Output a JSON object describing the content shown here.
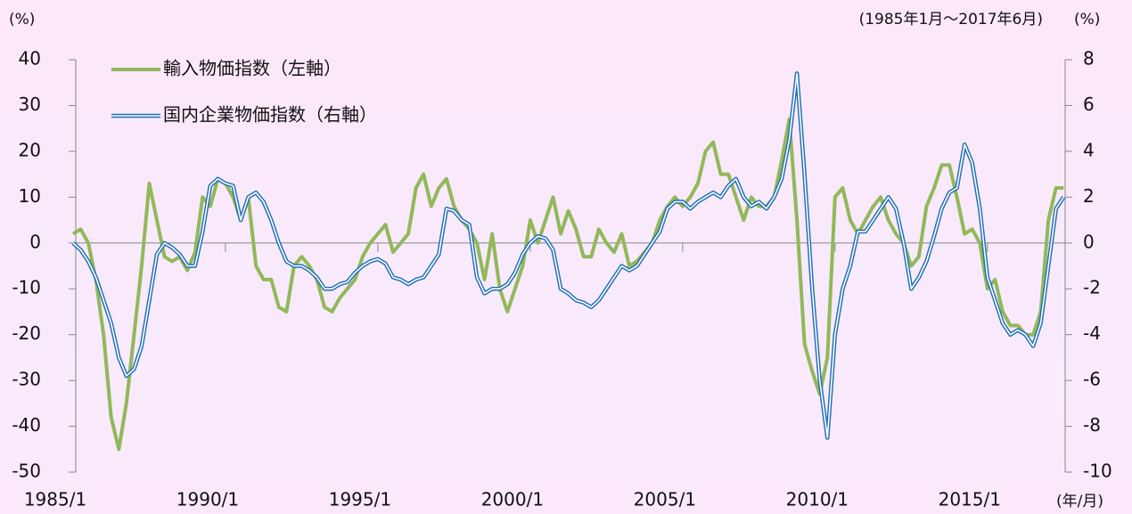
{
  "chart_data": {
    "type": "line",
    "ylabel": "(%)",
    "y2label": "(%)",
    "subtitle": "(1985年1月～2017年6月)",
    "xlabel": "(年/月)",
    "xlim": [
      1985,
      2017.55
    ],
    "ylim": [
      -50,
      40
    ],
    "y2lim": [
      -10,
      8
    ],
    "xticks": [
      {
        "value": 1985,
        "label": "1985/1"
      },
      {
        "value": 1990,
        "label": "1990/1"
      },
      {
        "value": 1995,
        "label": "1995/1"
      },
      {
        "value": 2000,
        "label": "2000/1"
      },
      {
        "value": 2005,
        "label": "2005/1"
      },
      {
        "value": 2010,
        "label": "2010/1"
      },
      {
        "value": 2015,
        "label": "2015/1"
      }
    ],
    "yticks": [
      40,
      30,
      20,
      10,
      0,
      -10,
      -20,
      -30,
      -40,
      -50
    ],
    "y2ticks": [
      8,
      6,
      4,
      2,
      0,
      -2,
      -4,
      -6,
      -8,
      -10
    ],
    "legend": "top-left",
    "x": [
      1985,
      1985.25,
      1985.5,
      1985.75,
      1986,
      1986.25,
      1986.5,
      1986.75,
      1987,
      1987.25,
      1987.5,
      1987.75,
      1988,
      1988.25,
      1988.5,
      1988.75,
      1989,
      1989.25,
      1989.5,
      1989.75,
      1990,
      1990.25,
      1990.5,
      1990.75,
      1991,
      1991.25,
      1991.5,
      1991.75,
      1992,
      1992.25,
      1992.5,
      1992.75,
      1993,
      1993.25,
      1993.5,
      1993.75,
      1994,
      1994.25,
      1994.5,
      1994.75,
      1995,
      1995.25,
      1995.5,
      1995.75,
      1996,
      1996.25,
      1996.5,
      1996.75,
      1997,
      1997.25,
      1997.5,
      1997.75,
      1998,
      1998.25,
      1998.5,
      1998.75,
      1999,
      1999.25,
      1999.5,
      1999.75,
      2000,
      2000.25,
      2000.5,
      2000.75,
      2001,
      2001.25,
      2001.5,
      2001.75,
      2002,
      2002.25,
      2002.5,
      2002.75,
      2003,
      2003.25,
      2003.5,
      2003.75,
      2004,
      2004.25,
      2004.5,
      2004.75,
      2005,
      2005.25,
      2005.5,
      2005.75,
      2006,
      2006.25,
      2006.5,
      2006.75,
      2007,
      2007.25,
      2007.5,
      2007.75,
      2008,
      2008.25,
      2008.5,
      2008.75,
      2009,
      2009.25,
      2009.5,
      2009.75,
      2010,
      2010.25,
      2010.5,
      2010.75,
      2011,
      2011.25,
      2011.5,
      2011.75,
      2012,
      2012.25,
      2012.5,
      2012.75,
      2013,
      2013.25,
      2013.5,
      2013.75,
      2014,
      2014.25,
      2014.5,
      2014.75,
      2015,
      2015.25,
      2015.5,
      2015.75,
      2016,
      2016.25,
      2016.5,
      2016.75,
      2017,
      2017.25,
      2017.5
    ],
    "series": [
      {
        "name": "輸入物価指数（左軸）",
        "color": "#92b85a",
        "axis": "y",
        "values": [
          2,
          3,
          0,
          -8,
          -20,
          -38,
          -45,
          -35,
          -20,
          -5,
          13,
          5,
          -3,
          -4,
          -3,
          -6,
          -2,
          10,
          8,
          14,
          13,
          10,
          5,
          10,
          -5,
          -8,
          -8,
          -14,
          -15,
          -5,
          -3,
          -5,
          -8,
          -14,
          -15,
          -12,
          -10,
          -8,
          -3,
          0,
          2,
          4,
          -2,
          0,
          2,
          12,
          15,
          8,
          12,
          14,
          8,
          5,
          3,
          0,
          -8,
          2,
          -10,
          -15,
          -10,
          -5,
          5,
          0,
          5,
          10,
          2,
          7,
          3,
          -3,
          -3,
          3,
          0,
          -2,
          2,
          -5,
          -4,
          -2,
          0,
          5,
          8,
          10,
          8,
          10,
          13,
          20,
          22,
          15,
          15,
          10,
          5,
          10,
          8,
          8,
          10,
          18,
          27,
          5,
          -22,
          -28,
          -33,
          -25,
          10,
          12,
          5,
          2,
          5,
          8,
          10,
          5,
          2,
          0,
          -5,
          -3,
          8,
          12,
          17,
          17,
          10,
          2,
          3,
          0,
          -10,
          -8,
          -15,
          -18,
          -18,
          -20,
          -20,
          -15,
          5,
          12,
          12
        ]
      },
      {
        "name": "国内企業物価指数（右軸）",
        "color": "#1f6fb5",
        "axis": "y2",
        "values": [
          0,
          -0.3,
          -0.8,
          -1.5,
          -2.5,
          -3.5,
          -5,
          -5.8,
          -5.5,
          -4.5,
          -2.5,
          -0.5,
          0,
          -0.2,
          -0.5,
          -1,
          -1,
          0.5,
          2.5,
          2.8,
          2.6,
          2.5,
          1,
          2,
          2.2,
          1.8,
          1,
          0,
          -0.8,
          -1,
          -1,
          -1.2,
          -1.5,
          -2,
          -2,
          -1.8,
          -1.7,
          -1.3,
          -1,
          -0.8,
          -0.7,
          -0.9,
          -1.5,
          -1.6,
          -1.8,
          -1.6,
          -1.5,
          -1,
          -0.5,
          1.5,
          1.4,
          1,
          0.8,
          -1.5,
          -2.2,
          -2,
          -2,
          -1.8,
          -1.3,
          -0.5,
          0,
          0.3,
          0.2,
          -0.3,
          -2,
          -2.2,
          -2.5,
          -2.6,
          -2.8,
          -2.5,
          -2,
          -1.5,
          -1,
          -1.2,
          -1,
          -0.5,
          0,
          0.5,
          1.5,
          1.8,
          1.8,
          1.5,
          1.8,
          2,
          2.2,
          2,
          2.5,
          2.8,
          2,
          1.6,
          1.8,
          1.5,
          2,
          2.8,
          4.5,
          7.4,
          3,
          -2,
          -6,
          -8.5,
          -4,
          -2,
          -1,
          0.5,
          0.5,
          1,
          1.5,
          2,
          1.5,
          0,
          -2,
          -1.5,
          -0.8,
          0.3,
          1.5,
          2.2,
          2.4,
          4.3,
          3.5,
          1.5,
          -1.5,
          -2.5,
          -3.5,
          -4,
          -3.8,
          -4,
          -4.5,
          -3.5,
          -1,
          1.5,
          2
        ]
      }
    ]
  }
}
